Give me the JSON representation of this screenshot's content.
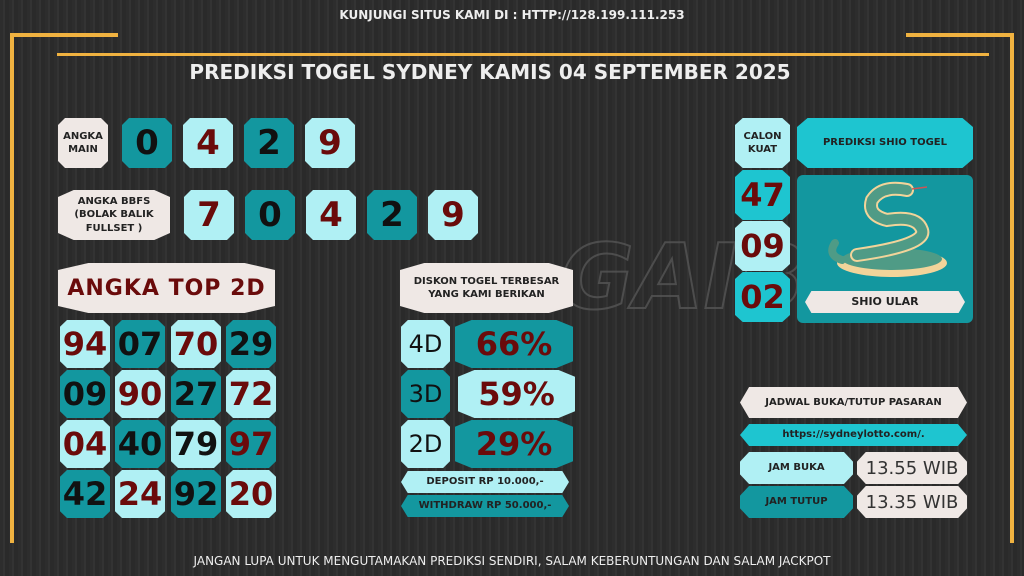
{
  "top_notice": "KUNJUNGI SITUS KAMI DI : HTTP://128.199.111.253",
  "title": "PREDIKSI TOGEL SYDNEY KAMIS 04 SEPTEMBER 2025",
  "angka_main": {
    "label": "ANGKA MAIN",
    "digits": [
      "0",
      "4",
      "2",
      "9"
    ]
  },
  "bbfs": {
    "label": "ANGKA BBFS (BOLAK BALIK FULLSET )",
    "digits": [
      "7",
      "0",
      "4",
      "2",
      "9"
    ]
  },
  "top2d": {
    "label": "ANGKA TOP 2D",
    "numbers": [
      "94",
      "07",
      "70",
      "29",
      "09",
      "90",
      "27",
      "72",
      "04",
      "40",
      "79",
      "97",
      "42",
      "24",
      "92",
      "20"
    ]
  },
  "diskon": {
    "label": "DISKON TOGEL TERBESAR YANG KAMI BERIKAN",
    "rows": [
      {
        "type": "4D",
        "pct": "66%"
      },
      {
        "type": "3D",
        "pct": "59%"
      },
      {
        "type": "2D",
        "pct": "29%"
      }
    ],
    "deposit": "DEPOSIT RP 10.000,-",
    "withdraw": "WITHDRAW RP 50.000,-"
  },
  "calon": {
    "label": "CALON KUAT",
    "numbers": [
      "47",
      "09",
      "02"
    ]
  },
  "shio": {
    "header": "PREDIKSI SHIO TOGEL",
    "name": "SHIO ULAR",
    "icon": "snake-illustration"
  },
  "jadwal": {
    "header": "JADWAL BUKA/TUTUP PASARAN",
    "url": "https://sydneylotto.com/.",
    "buka_label": "JAM BUKA",
    "buka": "13.55 WIB",
    "tutup_label": "JAM TUTUP",
    "tutup": "13.35 WIB"
  },
  "footer": "JANGAN LUPA UNTUK MENGUTAMAKAN PREDIKSI SENDIRI, SALAM KEBERUNTUNGAN DAN SALAM JACKPOT",
  "colors": {
    "dark_teal": "#13979f",
    "light_cyan": "#b0f0f4",
    "cyan": "#1ec5d0",
    "beige": "#efe8e5",
    "dark_red": "#6a0b0b",
    "gold": "#f0b240"
  }
}
